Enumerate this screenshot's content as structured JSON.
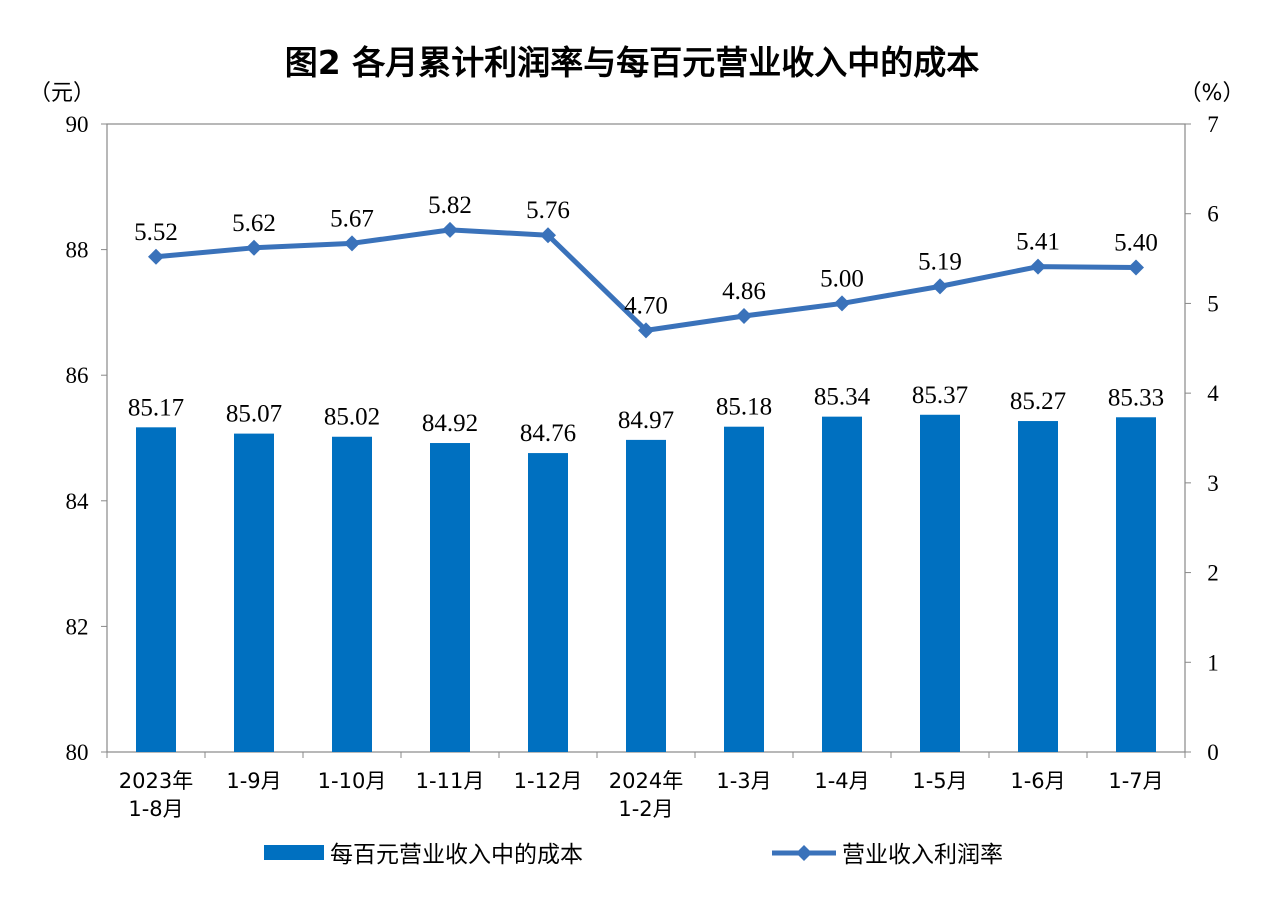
{
  "chart_data": {
    "type": "bar+line",
    "title": "图2  各月累计利润率与每百元营业收入中的成本",
    "left_axis": {
      "unit": "（元）",
      "ylim": [
        80,
        90
      ],
      "ticks": [
        80,
        82,
        84,
        86,
        88,
        90
      ]
    },
    "right_axis": {
      "unit": "（%）",
      "ylim": [
        0,
        7
      ],
      "ticks": [
        0,
        1,
        2,
        3,
        4,
        5,
        6,
        7
      ]
    },
    "categories": [
      [
        "2023年",
        "1-8月"
      ],
      [
        "1-9月"
      ],
      [
        "1-10月"
      ],
      [
        "1-11月"
      ],
      [
        "1-12月"
      ],
      [
        "2024年",
        "1-2月"
      ],
      [
        "1-3月"
      ],
      [
        "1-4月"
      ],
      [
        "1-5月"
      ],
      [
        "1-6月"
      ],
      [
        "1-7月"
      ]
    ],
    "series": [
      {
        "name": "每百元营业收入中的成本",
        "type": "bar",
        "axis": "left",
        "color": "#0070C0",
        "values": [
          85.17,
          85.07,
          85.02,
          84.92,
          84.76,
          84.97,
          85.18,
          85.34,
          85.37,
          85.27,
          85.33
        ]
      },
      {
        "name": "营业收入利润率",
        "type": "line",
        "axis": "right",
        "color": "#3A72BA",
        "marker": "diamond",
        "values": [
          5.52,
          5.62,
          5.67,
          5.82,
          5.76,
          4.7,
          4.86,
          5.0,
          5.19,
          5.41,
          5.4
        ]
      }
    ],
    "legend": "bottom",
    "grid": false
  }
}
